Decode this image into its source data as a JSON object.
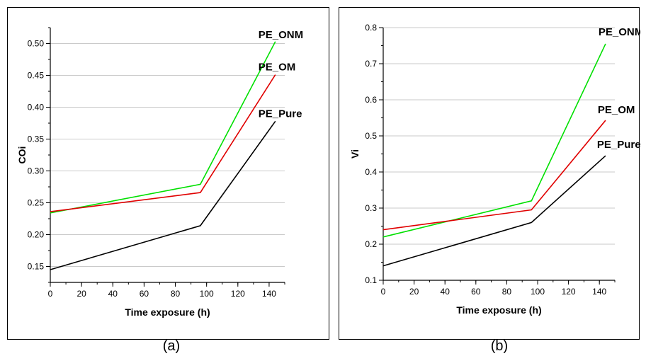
{
  "captions": {
    "a": "(a)",
    "b": "(b)"
  },
  "chart_data": [
    {
      "type": "line",
      "xlabel": "Time exposure (h)",
      "ylabel": "COi",
      "xlim": [
        0,
        150
      ],
      "ylim": [
        0.125,
        0.525
      ],
      "x_ticks": [
        0,
        20,
        40,
        60,
        80,
        100,
        120,
        140
      ],
      "y_ticks": [
        0.15,
        0.2,
        0.25,
        0.3,
        0.35,
        0.4,
        0.45,
        0.5
      ],
      "y_tick_decimals": 2,
      "grid": "horizontal",
      "series": [
        {
          "name": "PE_ONM",
          "color": "#00e000",
          "x": [
            0,
            96,
            144
          ],
          "values": [
            0.234,
            0.279,
            0.503
          ]
        },
        {
          "name": "PE_OM",
          "color": "#e00000",
          "x": [
            0,
            96,
            144
          ],
          "values": [
            0.236,
            0.266,
            0.451
          ]
        },
        {
          "name": "PE_Pure",
          "color": "#000000",
          "x": [
            0,
            96,
            144
          ],
          "values": [
            0.145,
            0.214,
            0.378
          ]
        }
      ]
    },
    {
      "type": "line",
      "xlabel": "Time exposure (h)",
      "ylabel": "Vi",
      "xlim": [
        0,
        150
      ],
      "ylim": [
        0.1,
        0.8
      ],
      "x_ticks": [
        0,
        20,
        40,
        60,
        80,
        100,
        120,
        140
      ],
      "y_ticks": [
        0.1,
        0.2,
        0.3,
        0.4,
        0.5,
        0.6,
        0.7,
        0.8
      ],
      "y_tick_decimals": 1,
      "grid": "horizontal",
      "series": [
        {
          "name": "PE_ONM",
          "color": "#00e000",
          "x": [
            0,
            96,
            144
          ],
          "values": [
            0.22,
            0.32,
            0.755
          ]
        },
        {
          "name": "PE_OM",
          "color": "#e00000",
          "x": [
            0,
            96,
            144
          ],
          "values": [
            0.24,
            0.295,
            0.543
          ]
        },
        {
          "name": "PE_Pure",
          "color": "#000000",
          "x": [
            0,
            96,
            144
          ],
          "values": [
            0.14,
            0.26,
            0.445
          ]
        }
      ]
    }
  ]
}
